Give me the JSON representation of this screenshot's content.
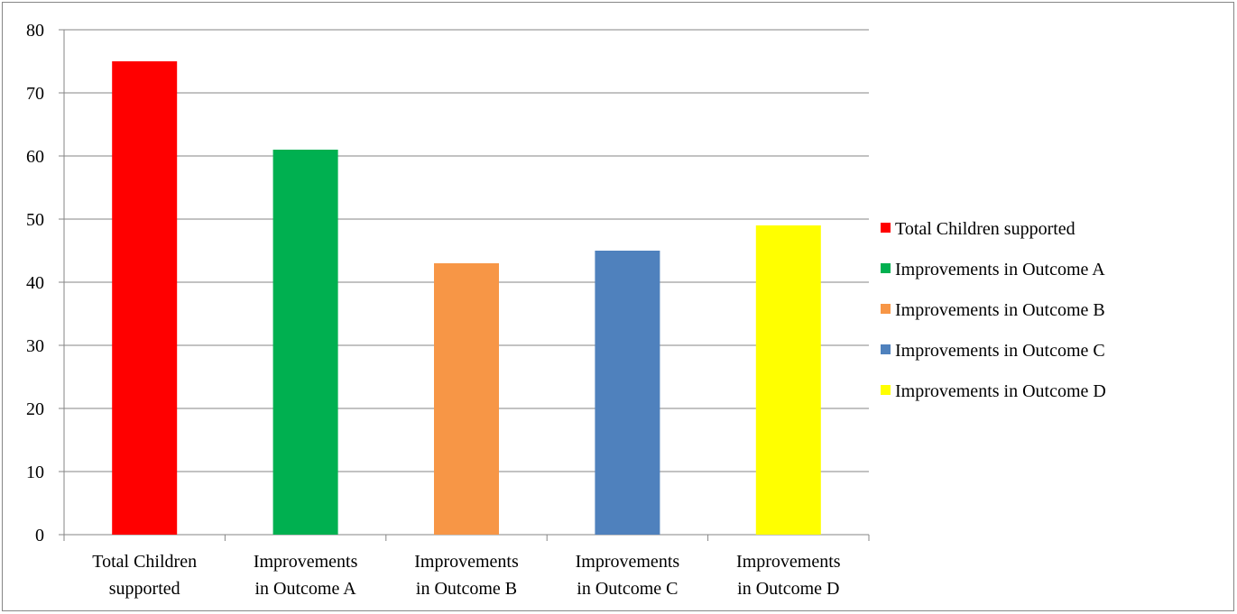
{
  "chart_data": {
    "type": "bar",
    "categories": [
      [
        "Total Children",
        "supported"
      ],
      [
        "Improvements",
        "in Outcome A"
      ],
      [
        "Improvements",
        "in Outcome B"
      ],
      [
        "Improvements",
        "in Outcome C"
      ],
      [
        "Improvements",
        "in Outcome D"
      ]
    ],
    "values": [
      75,
      61,
      43,
      45,
      49
    ],
    "colors": [
      "#ff0000",
      "#00b050",
      "#f79646",
      "#4f81bd",
      "#ffff00"
    ],
    "ylim": [
      0,
      80
    ],
    "yticks": [
      0,
      10,
      20,
      30,
      40,
      50,
      60,
      70,
      80
    ],
    "grid": true,
    "legend_position": "right",
    "legend": [
      "Total Children supported",
      "Improvements in Outcome A",
      "Improvements in Outcome B",
      "Improvements in Outcome C",
      "Improvements in Outcome D"
    ],
    "title": "",
    "xlabel": "",
    "ylabel": ""
  }
}
